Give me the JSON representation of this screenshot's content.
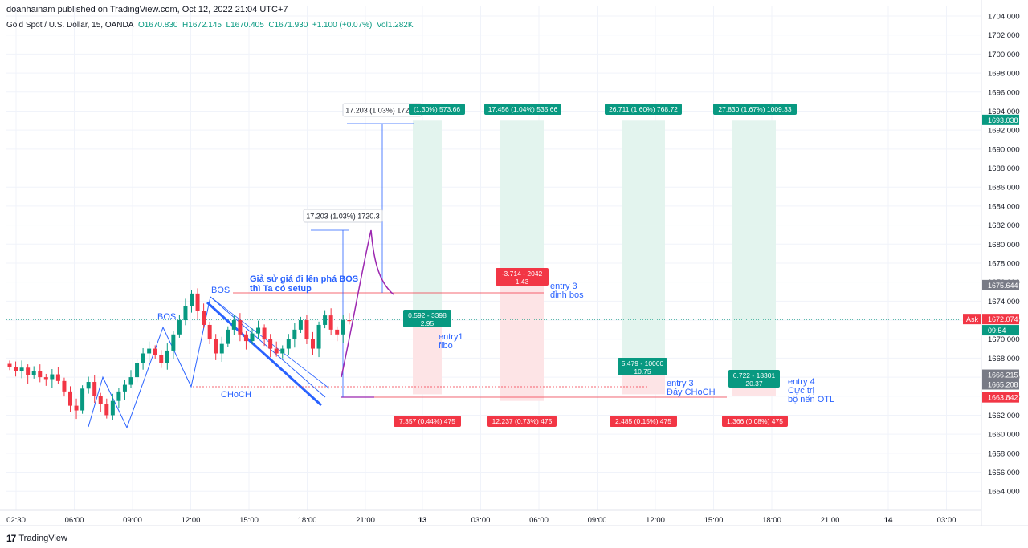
{
  "header": {
    "published": "doanhainam published on TradingView.com, Oct 12, 2022 21:04 UTC+7",
    "symbol": "Gold Spot / U.S. Dollar, 15, OANDA",
    "open": "O1670.830",
    "high": "H1672.145",
    "low": "L1670.405",
    "close": "C1671.930",
    "change": "+1.100 (+0.07%)",
    "volume": "Vol1.282K"
  },
  "footer": {
    "brand": "TradingView",
    "logo": "tradingview-logo-icon"
  },
  "chart_data": {
    "type": "candlestick",
    "y_axis": {
      "min": 1652.5,
      "max": 1704,
      "ticks": [
        1704,
        1702,
        1700,
        1698,
        1696,
        1694,
        1692,
        1690,
        1688,
        1686,
        1684,
        1682,
        1680,
        1678,
        1676,
        1674,
        1672,
        1670,
        1668,
        1666,
        1664,
        1662,
        1660,
        1658,
        1656,
        1654
      ]
    },
    "x_axis": {
      "labels": [
        "02:30",
        "06:00",
        "09:00",
        "12:00",
        "15:00",
        "18:00",
        "21:00",
        "13",
        "03:00",
        "06:00",
        "09:00",
        "12:00",
        "15:00",
        "18:00",
        "21:00",
        "14",
        "03:00"
      ],
      "bold": [
        "13",
        "14"
      ]
    },
    "candle_close_path": [
      1667.1,
      1666.6,
      1667.0,
      1666.2,
      1666.6,
      1666.0,
      1665.8,
      1666.3,
      1665.6,
      1664.5,
      1663.0,
      1662.5,
      1664.8,
      1665.5,
      1664.0,
      1663.2,
      1662.0,
      1663.5,
      1664.5,
      1665.2,
      1666.0,
      1667.5,
      1668.5,
      1669.0,
      1668.3,
      1667.5,
      1668.8,
      1670.5,
      1672.0,
      1673.5,
      1674.8,
      1673.0,
      1671.5,
      1670.0,
      1668.5,
      1669.5,
      1671.0,
      1672.0,
      1670.5,
      1669.8,
      1670.6,
      1671.2,
      1670.0,
      1669.0,
      1668.5,
      1669.0,
      1670.0,
      1671.0,
      1672.0,
      1670.0,
      1669.0,
      1671.5,
      1672.5,
      1671.0,
      1670.5,
      1672.0,
      1671.9
    ],
    "price_labels": [
      {
        "price": 1693.038,
        "text": "1693.038",
        "color": "#089981"
      },
      {
        "price": 1675.644,
        "text": "1675.644",
        "color": "#787b86"
      },
      {
        "price": 1672.074,
        "text": "1672.074",
        "color": "#f23645",
        "tag": "Ask"
      },
      {
        "price": 1670.9,
        "text": "09:54",
        "color": "#089981"
      },
      {
        "price": 1666.215,
        "text": "1666.215",
        "color": "#787b86"
      },
      {
        "price": 1665.208,
        "text": "1665.208",
        "color": "#787b86"
      },
      {
        "price": 1663.842,
        "text": "1663.842",
        "color": "#f23645"
      }
    ],
    "positions": [
      {
        "entry": 1671.5,
        "target": 1693.0,
        "stop": 1664.2,
        "top_label": "(1.30%) 573.66",
        "bottom_label": "7.357 (0.44%) 475",
        "mid_label": [
          "0.592 - 3398",
          "2.95"
        ],
        "mid_color": "#089981",
        "note": [
          "entry1",
          "fibo"
        ]
      },
      {
        "entry": 1675.6,
        "target": 1693.0,
        "stop": 1663.5,
        "top_label": "17.456 (1.04%) 535.66",
        "bottom_label": "12.237 (0.73%) 475",
        "mid_label": [
          "-3.714 - 2042",
          "1.43"
        ],
        "mid_color": "#f23645",
        "note": [
          "entry 3",
          "đỉnh bos"
        ]
      },
      {
        "entry": 1666.4,
        "target": 1693.0,
        "stop": 1664.2,
        "top_label": "26.711 (1.60%) 768.72",
        "bottom_label": "2.485 (0.15%) 475",
        "mid_label": [
          "5.479 - 10060",
          "10.75"
        ],
        "mid_color": "#089981",
        "note": [
          "entry 3",
          "Đáy CHoCH"
        ]
      },
      {
        "entry": 1665.3,
        "target": 1693.0,
        "stop": 1664.0,
        "top_label": "27.830 (1.67%) 1009.33",
        "bottom_label": "1.366 (0.08%) 475",
        "mid_label": [
          "6.722 - 18301",
          "20.37"
        ],
        "mid_color": "#089981",
        "note": [
          "entry 4",
          "Cực trị",
          "bộ nến OTL"
        ]
      }
    ],
    "measures": [
      {
        "text": "17.203 (1.03%) 1720.3"
      },
      {
        "text": "17.203 (1.03%) 1720.3"
      }
    ],
    "annotations": [
      {
        "text": "BOS"
      },
      {
        "text": "BOS"
      },
      {
        "text": "CHoCH"
      },
      {
        "text": "Giả sử giá đi lên phá BOS"
      },
      {
        "text": "thì Ta có setup"
      }
    ],
    "colors": {
      "up": "#089981",
      "down": "#f23645",
      "annotation": "#2962ff",
      "curve": "#9c27b0",
      "profit_zone": "#e3f4ee",
      "loss_zone": "#fde4e6",
      "grid": "#f0f3fa"
    }
  }
}
